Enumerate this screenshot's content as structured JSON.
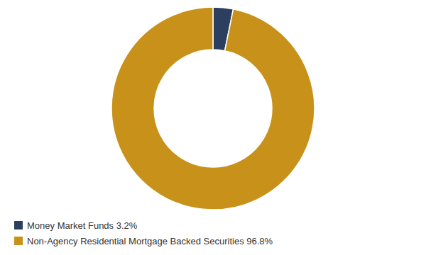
{
  "chart_data": {
    "type": "donut",
    "categories": [
      "Money Market Funds 3.2%",
      "Non-Agency Residential Mortgage Backed Securities 96.8%"
    ],
    "values": [
      3.2,
      96.8
    ],
    "colors": [
      "#2d3f5e",
      "#c8921a"
    ],
    "legend": "lower left"
  }
}
